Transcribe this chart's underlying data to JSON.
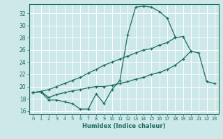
{
  "xlabel": "Humidex (Indice chaleur)",
  "bg_color": "#cde8e8",
  "line_color": "#1e6b5e",
  "grid_color": "#ffffff",
  "xlim": [
    -0.5,
    23.5
  ],
  "ylim": [
    15.5,
    33.5
  ],
  "xticks": [
    0,
    1,
    2,
    3,
    4,
    5,
    6,
    7,
    8,
    9,
    10,
    11,
    12,
    13,
    14,
    15,
    16,
    17,
    18,
    19,
    20,
    21,
    22,
    23
  ],
  "yticks": [
    16,
    18,
    20,
    22,
    24,
    26,
    28,
    30,
    32
  ],
  "lines": [
    {
      "x": [
        0,
        1,
        2,
        3,
        4,
        5,
        6,
        7,
        8,
        9,
        10,
        11,
        12,
        13,
        14,
        15,
        16,
        17,
        18
      ],
      "y": [
        19.0,
        19.1,
        17.8,
        17.8,
        17.5,
        17.2,
        16.3,
        16.3,
        18.8,
        17.2,
        19.5,
        21.0,
        28.5,
        33.0,
        33.2,
        33.0,
        32.3,
        31.2,
        28.2
      ]
    },
    {
      "x": [
        0,
        1,
        2,
        3,
        4,
        5,
        6,
        7,
        8,
        9,
        10,
        11,
        12,
        13,
        14,
        15,
        16,
        17,
        18,
        19,
        20
      ],
      "y": [
        19.0,
        19.2,
        19.5,
        20.0,
        20.5,
        21.0,
        21.5,
        22.2,
        22.8,
        23.5,
        24.0,
        24.5,
        25.0,
        25.5,
        26.0,
        26.2,
        26.8,
        27.2,
        28.0,
        28.2,
        25.8
      ]
    },
    {
      "x": [
        0,
        1,
        2,
        3,
        4,
        5,
        6,
        7,
        8,
        9,
        10,
        11,
        12,
        13,
        14,
        15,
        16,
        17,
        18,
        19,
        20,
        21,
        22,
        23
      ],
      "y": [
        19.0,
        19.2,
        18.2,
        18.7,
        19.0,
        19.3,
        19.5,
        19.8,
        20.0,
        20.0,
        20.2,
        20.5,
        20.8,
        21.2,
        21.5,
        22.0,
        22.3,
        22.8,
        23.5,
        24.5,
        25.8,
        25.5,
        20.8,
        20.5
      ]
    }
  ]
}
